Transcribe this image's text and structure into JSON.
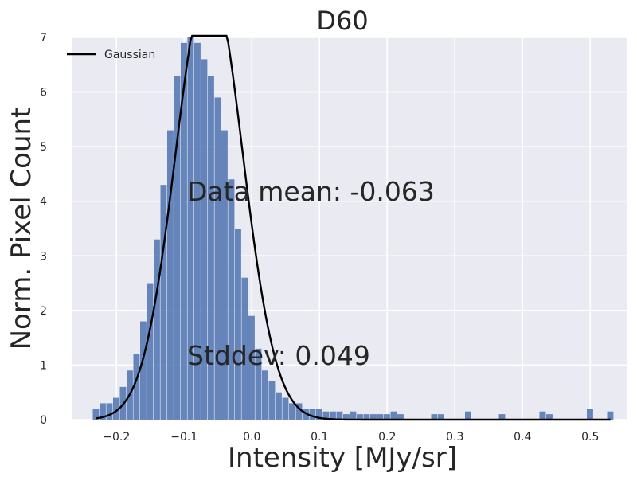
{
  "chart_data": {
    "type": "bar",
    "title": "D60",
    "xlabel": "Intensity [MJy/sr]",
    "ylabel": "Norm. Pixel Count",
    "xlim": [
      -0.265,
      0.555
    ],
    "ylim": [
      0,
      7
    ],
    "x_ticks": [
      -0.2,
      -0.1,
      0.0,
      0.1,
      0.2,
      0.3,
      0.4,
      0.5
    ],
    "x_tick_labels": [
      "−0.2",
      "−0.1",
      "0.0",
      "0.1",
      "0.2",
      "0.3",
      "0.4",
      "0.5"
    ],
    "y_ticks": [
      0,
      1,
      2,
      3,
      4,
      5,
      6,
      7
    ],
    "y_tick_labels": [
      "0",
      "1",
      "2",
      "3",
      "4",
      "5",
      "6",
      "7"
    ],
    "grid": true,
    "legend": {
      "position": "top-left",
      "entries": [
        "Gaussian"
      ]
    },
    "annotations": [
      "Data mean: -0.063",
      "Stddev: 0.049"
    ],
    "colors": {
      "bars": "#4c72b0",
      "gaussian": "#000000",
      "background": "#eaeaf2",
      "grid": "#ffffff"
    },
    "series": [
      {
        "name": "histogram",
        "type": "bar",
        "bin_width": 0.01,
        "x": [
          -0.23,
          -0.22,
          -0.21,
          -0.2,
          -0.19,
          -0.18,
          -0.17,
          -0.16,
          -0.15,
          -0.14,
          -0.13,
          -0.12,
          -0.11,
          -0.1,
          -0.09,
          -0.08,
          -0.07,
          -0.06,
          -0.05,
          -0.04,
          -0.03,
          -0.02,
          -0.01,
          0.0,
          0.01,
          0.02,
          0.03,
          0.04,
          0.05,
          0.06,
          0.07,
          0.08,
          0.09,
          0.1,
          0.11,
          0.12,
          0.13,
          0.14,
          0.15,
          0.16,
          0.17,
          0.18,
          0.19,
          0.2,
          0.21,
          0.22,
          0.27,
          0.28,
          0.32,
          0.37,
          0.43,
          0.44,
          0.5,
          0.53
        ],
        "values": [
          0.2,
          0.3,
          0.3,
          0.4,
          0.6,
          0.9,
          1.2,
          1.8,
          2.5,
          3.3,
          4.3,
          5.3,
          6.3,
          6.9,
          7.0,
          6.9,
          6.6,
          6.3,
          5.9,
          5.3,
          4.4,
          3.5,
          2.6,
          1.9,
          1.3,
          0.9,
          0.7,
          0.5,
          0.4,
          0.3,
          0.3,
          0.2,
          0.2,
          0.2,
          0.15,
          0.15,
          0.15,
          0.1,
          0.15,
          0.1,
          0.1,
          0.1,
          0.1,
          0.1,
          0.15,
          0.1,
          0.1,
          0.1,
          0.15,
          0.1,
          0.15,
          0.1,
          0.2,
          0.15
        ]
      },
      {
        "name": "Gaussian",
        "type": "line",
        "mean": -0.063,
        "stddev": 0.049,
        "x_range": [
          -0.23,
          0.53
        ]
      }
    ]
  }
}
